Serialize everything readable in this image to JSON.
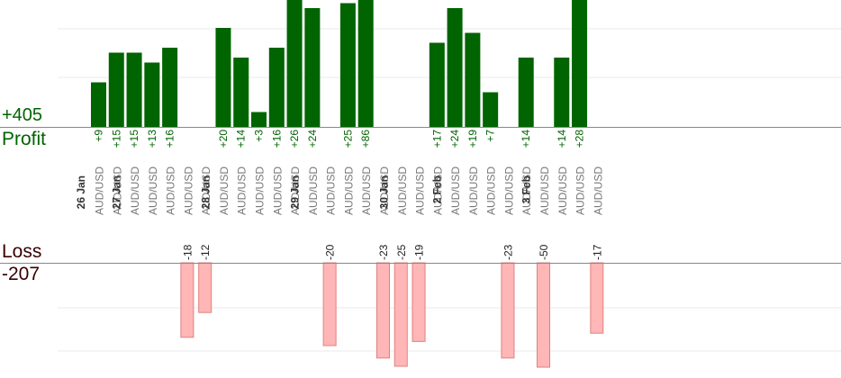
{
  "summary": {
    "profit_total": "+405",
    "profit_label": "Profit",
    "loss_label": "Loss",
    "loss_total": "-207"
  },
  "colors": {
    "profit_bar": "#006400",
    "profit_text": "#006400",
    "loss_bar": "#ffb6b6",
    "loss_bar_border": "#e08080",
    "loss_text": "#3a0000",
    "instrument_text": "#777777",
    "date_text": "#333333",
    "gridline": "#e8e8e8",
    "axis": "#888888"
  },
  "chart_data": {
    "type": "bar",
    "title": "",
    "xlabel": "",
    "ylabel": "",
    "grid": true,
    "categories": [
      {
        "date": "26 Jan",
        "instrument": "AUD/USD",
        "profit": 9,
        "loss": null
      },
      {
        "date": "",
        "instrument": "AUD/USD",
        "profit": 15,
        "loss": null
      },
      {
        "date": "27 Jan",
        "instrument": "AUD/USD",
        "profit": 15,
        "loss": null
      },
      {
        "date": "",
        "instrument": "AUD/USD",
        "profit": 13,
        "loss": null
      },
      {
        "date": "",
        "instrument": "AUD/USD",
        "profit": 16,
        "loss": null
      },
      {
        "date": "",
        "instrument": "AUD/USD",
        "profit": null,
        "loss": -18
      },
      {
        "date": "",
        "instrument": "AUD/USD",
        "profit": null,
        "loss": -12
      },
      {
        "date": "28 Jan",
        "instrument": "AUD/USD",
        "profit": 20,
        "loss": null
      },
      {
        "date": "",
        "instrument": "AUD/USD",
        "profit": 14,
        "loss": null
      },
      {
        "date": "",
        "instrument": "AUD/USD",
        "profit": 3,
        "loss": null
      },
      {
        "date": "",
        "instrument": "AUD/USD",
        "profit": 16,
        "loss": null
      },
      {
        "date": "",
        "instrument": "AUD/USD",
        "profit": 26,
        "loss": null
      },
      {
        "date": "29 Jan",
        "instrument": "AUD/USD",
        "profit": 24,
        "loss": null
      },
      {
        "date": "",
        "instrument": "AUD/USD",
        "profit": null,
        "loss": -20
      },
      {
        "date": "",
        "instrument": "AUD/USD",
        "profit": 25,
        "loss": null
      },
      {
        "date": "",
        "instrument": "AUD/USD",
        "profit": 86,
        "loss": null
      },
      {
        "date": "",
        "instrument": "AUD/USD",
        "profit": null,
        "loss": -23
      },
      {
        "date": "30 Jan",
        "instrument": "AUD/USD",
        "profit": null,
        "loss": -25
      },
      {
        "date": "",
        "instrument": "AUD/USD",
        "profit": null,
        "loss": -19
      },
      {
        "date": "",
        "instrument": "AUD/USD",
        "profit": 17,
        "loss": null
      },
      {
        "date": "2 Feb",
        "instrument": "AUD/USD",
        "profit": 24,
        "loss": null
      },
      {
        "date": "",
        "instrument": "AUD/USD",
        "profit": 19,
        "loss": null
      },
      {
        "date": "",
        "instrument": "AUD/USD",
        "profit": 7,
        "loss": null
      },
      {
        "date": "",
        "instrument": "AUD/USD",
        "profit": null,
        "loss": -23
      },
      {
        "date": "",
        "instrument": "AUD/USD",
        "profit": 14,
        "loss": null
      },
      {
        "date": "3 Feb",
        "instrument": "AUD/USD",
        "profit": null,
        "loss": -50
      },
      {
        "date": "",
        "instrument": "AUD/USD",
        "profit": 14,
        "loss": null
      },
      {
        "date": "",
        "instrument": "AUD/USD",
        "profit": 28,
        "loss": null
      },
      {
        "date": "",
        "instrument": "AUD/USD",
        "profit": null,
        "loss": -17
      }
    ],
    "profit_axis": {
      "ylim": [
        0,
        26
      ]
    },
    "loss_axis": {
      "ylim": [
        -25,
        0
      ]
    }
  }
}
